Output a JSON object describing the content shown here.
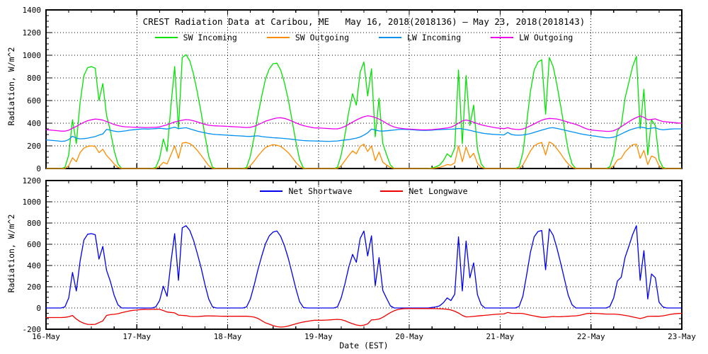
{
  "figure": {
    "background": "#ffffff",
    "axis_color": "#000000",
    "grid_style": "dotted"
  },
  "chart_data": [
    {
      "type": "line",
      "panel": "top",
      "title": "CREST Radiation Data at Caribou, ME   May 16, 2018(2018136) – May 23, 2018(2018143)",
      "ylabel": "Radiation, W/m^2",
      "ylim": [
        0,
        1400
      ],
      "yticks": [
        0,
        200,
        400,
        600,
        800,
        1000,
        1200,
        1400
      ],
      "ytick_minor_step": 50,
      "grid_y": [
        200,
        400,
        600,
        800,
        1000,
        1200
      ],
      "x_unit": "hours EST from 16-May 00:00 to 23-May 00:00, hourly samples",
      "x_hours_span": 168,
      "xtick_labels": [
        "16-May",
        "17-May",
        "18-May",
        "19-May",
        "20-May",
        "21-May",
        "22-May",
        "23-May"
      ],
      "xtick_minor_hours": 6,
      "legend_position": "top-center-inside",
      "series": [
        {
          "name": "SW Incoming",
          "color": "#00e300",
          "values": [
            0,
            0,
            0,
            0,
            0,
            10,
            120,
            430,
            220,
            580,
            820,
            890,
            900,
            885,
            600,
            750,
            470,
            330,
            160,
            40,
            0,
            0,
            0,
            0,
            0,
            0,
            0,
            0,
            0,
            10,
            90,
            260,
            150,
            550,
            900,
            350,
            980,
            1005,
            950,
            830,
            670,
            490,
            290,
            110,
            10,
            0,
            0,
            0,
            0,
            0,
            0,
            0,
            0,
            10,
            110,
            280,
            470,
            640,
            790,
            880,
            925,
            930,
            870,
            755,
            610,
            430,
            240,
            80,
            5,
            0,
            0,
            0,
            0,
            0,
            0,
            0,
            0,
            10,
            120,
            300,
            500,
            660,
            560,
            850,
            940,
            640,
            880,
            280,
            620,
            220,
            120,
            30,
            0,
            0,
            0,
            0,
            0,
            0,
            0,
            0,
            0,
            0,
            5,
            15,
            30,
            70,
            130,
            100,
            180,
            870,
            220,
            820,
            380,
            560,
            170,
            40,
            0,
            0,
            0,
            0,
            0,
            0,
            0,
            0,
            0,
            15,
            140,
            400,
            680,
            870,
            940,
            960,
            480,
            980,
            900,
            740,
            550,
            350,
            160,
            40,
            0,
            0,
            0,
            0,
            0,
            0,
            0,
            0,
            0,
            15,
            120,
            330,
            380,
            620,
            760,
            900,
            990,
            350,
            700,
            120,
            430,
            380,
            80,
            10,
            0,
            0,
            0,
            0,
            0
          ]
        },
        {
          "name": "SW Outgoing",
          "color": "#ff8c00",
          "values": [
            0,
            0,
            0,
            0,
            0,
            0,
            25,
            95,
            60,
            140,
            180,
            195,
            200,
            195,
            140,
            170,
            115,
            80,
            40,
            10,
            0,
            0,
            0,
            0,
            0,
            0,
            0,
            0,
            0,
            0,
            20,
            55,
            40,
            120,
            200,
            90,
            225,
            230,
            220,
            195,
            160,
            115,
            70,
            25,
            0,
            0,
            0,
            0,
            0,
            0,
            0,
            0,
            0,
            0,
            25,
            65,
            110,
            150,
            185,
            200,
            210,
            205,
            195,
            170,
            140,
            100,
            55,
            20,
            0,
            0,
            0,
            0,
            0,
            0,
            0,
            0,
            0,
            0,
            25,
            70,
            115,
            155,
            130,
            195,
            215,
            150,
            200,
            70,
            145,
            55,
            30,
            10,
            0,
            0,
            0,
            0,
            0,
            0,
            0,
            0,
            0,
            0,
            0,
            5,
            10,
            20,
            35,
            30,
            50,
            200,
            60,
            190,
            95,
            135,
            45,
            10,
            0,
            0,
            0,
            0,
            0,
            0,
            0,
            0,
            0,
            0,
            30,
            90,
            155,
            200,
            220,
            230,
            120,
            235,
            215,
            175,
            130,
            80,
            40,
            10,
            0,
            0,
            0,
            0,
            0,
            0,
            0,
            0,
            0,
            0,
            25,
            75,
            90,
            145,
            180,
            210,
            215,
            90,
            160,
            35,
            110,
            95,
            25,
            0,
            0,
            0,
            0,
            0,
            0
          ]
        },
        {
          "name": "LW Incoming",
          "color": "#0090f0",
          "values": [
            252,
            250,
            247,
            244,
            240,
            242,
            255,
            285,
            268,
            262,
            264,
            268,
            275,
            282,
            295,
            305,
            345,
            338,
            330,
            325,
            328,
            332,
            338,
            342,
            345,
            348,
            350,
            348,
            350,
            352,
            355,
            352,
            348,
            356,
            365,
            352,
            356,
            360,
            350,
            340,
            330,
            322,
            315,
            308,
            303,
            300,
            298,
            296,
            294,
            292,
            290,
            288,
            286,
            284,
            283,
            286,
            288,
            282,
            278,
            275,
            272,
            270,
            268,
            265,
            262,
            258,
            254,
            250,
            247,
            245,
            244,
            243,
            242,
            241,
            240,
            240,
            241,
            243,
            248,
            252,
            255,
            262,
            268,
            278,
            295,
            315,
            348,
            340,
            332,
            330,
            333,
            336,
            340,
            344,
            346,
            345,
            343,
            341,
            339,
            337,
            336,
            337,
            339,
            341,
            343,
            345,
            346,
            347,
            349,
            353,
            350,
            344,
            337,
            329,
            321,
            314,
            309,
            305,
            302,
            300,
            298,
            296,
            318,
            300,
            295,
            294,
            296,
            301,
            309,
            319,
            329,
            339,
            349,
            358,
            360,
            354,
            347,
            339,
            331,
            323,
            316,
            308,
            301,
            296,
            290,
            286,
            281,
            276,
            271,
            271,
            277,
            289,
            305,
            321,
            337,
            349,
            358,
            365,
            361,
            351,
            356,
            360,
            347,
            341,
            345,
            348,
            350,
            350,
            350
          ]
        },
        {
          "name": "LW Outgoing",
          "color": "#ee00ee",
          "values": [
            342,
            340,
            337,
            334,
            330,
            330,
            338,
            356,
            372,
            390,
            408,
            422,
            430,
            436,
            433,
            427,
            415,
            401,
            389,
            379,
            372,
            368,
            366,
            365,
            364,
            363,
            362,
            362,
            363,
            364,
            368,
            376,
            386,
            398,
            411,
            419,
            426,
            432,
            429,
            421,
            411,
            400,
            390,
            382,
            378,
            376,
            375,
            374,
            372,
            370,
            368,
            366,
            364,
            362,
            364,
            372,
            386,
            401,
            418,
            428,
            438,
            446,
            448,
            442,
            432,
            418,
            403,
            390,
            379,
            371,
            364,
            358,
            358,
            356,
            354,
            352,
            350,
            350,
            358,
            372,
            390,
            410,
            428,
            444,
            457,
            465,
            460,
            450,
            436,
            418,
            398,
            380,
            366,
            358,
            354,
            350,
            348,
            346,
            344,
            342,
            341,
            342,
            344,
            347,
            350,
            354,
            358,
            365,
            380,
            400,
            420,
            428,
            420,
            408,
            396,
            386,
            378,
            371,
            365,
            359,
            355,
            352,
            360,
            350,
            346,
            344,
            349,
            361,
            377,
            394,
            411,
            427,
            437,
            442,
            440,
            437,
            429,
            419,
            409,
            399,
            390,
            377,
            362,
            348,
            340,
            337,
            334,
            331,
            328,
            328,
            334,
            349,
            369,
            391,
            413,
            433,
            450,
            464,
            452,
            430,
            433,
            438,
            425,
            415,
            412,
            408,
            405,
            402,
            400
          ]
        }
      ]
    },
    {
      "type": "line",
      "panel": "bottom",
      "ylabel": "Radiation, W/m^2",
      "xlabel": "Date (EST)",
      "ylim": [
        -200,
        1200
      ],
      "yticks": [
        -200,
        0,
        200,
        400,
        600,
        800,
        1000,
        1200
      ],
      "ytick_minor_step": 50,
      "grid_y": [
        0,
        200,
        400,
        600,
        800,
        1000
      ],
      "x_hours_span": 168,
      "xtick_labels": [
        "16-May",
        "17-May",
        "18-May",
        "19-May",
        "20-May",
        "21-May",
        "22-May",
        "23-May"
      ],
      "xtick_minor_hours": 6,
      "legend_position": "top-center-inside",
      "series": [
        {
          "name": "Net Shortwave",
          "color": "#0000ee",
          "values": [
            0,
            0,
            0,
            0,
            0,
            10,
            95,
            335,
            160,
            440,
            640,
            695,
            700,
            690,
            460,
            580,
            355,
            250,
            120,
            30,
            0,
            0,
            0,
            0,
            0,
            0,
            0,
            0,
            0,
            10,
            70,
            205,
            110,
            430,
            700,
            260,
            755,
            775,
            730,
            635,
            510,
            375,
            220,
            85,
            10,
            0,
            0,
            0,
            0,
            0,
            0,
            0,
            0,
            10,
            85,
            215,
            360,
            490,
            605,
            680,
            715,
            725,
            675,
            585,
            470,
            330,
            185,
            60,
            5,
            0,
            0,
            0,
            0,
            0,
            0,
            0,
            0,
            10,
            95,
            230,
            385,
            505,
            430,
            655,
            725,
            490,
            680,
            210,
            475,
            165,
            90,
            20,
            0,
            0,
            0,
            0,
            0,
            0,
            0,
            0,
            0,
            0,
            5,
            10,
            20,
            50,
            95,
            70,
            130,
            670,
            160,
            630,
            285,
            425,
            125,
            30,
            0,
            0,
            0,
            0,
            0,
            0,
            0,
            0,
            0,
            15,
            110,
            310,
            525,
            670,
            720,
            730,
            360,
            745,
            685,
            565,
            420,
            270,
            120,
            30,
            0,
            0,
            0,
            0,
            0,
            0,
            0,
            0,
            0,
            15,
            95,
            255,
            290,
            475,
            580,
            690,
            775,
            260,
            540,
            85,
            320,
            285,
            55,
            10,
            0,
            0,
            0,
            0,
            0
          ]
        },
        {
          "name": "Net Longwave",
          "color": "#ee0000",
          "values": [
            -90,
            -90,
            -90,
            -90,
            -90,
            -88,
            -83,
            -71,
            -104,
            -128,
            -144,
            -154,
            -155,
            -154,
            -138,
            -122,
            -70,
            -63,
            -59,
            -54,
            -44,
            -36,
            -28,
            -23,
            -19,
            -15,
            -12,
            -14,
            -13,
            -12,
            -13,
            -24,
            -38,
            -42,
            -46,
            -67,
            -70,
            -72,
            -79,
            -81,
            -81,
            -78,
            -75,
            -74,
            -75,
            -76,
            -77,
            -78,
            -78,
            -78,
            -78,
            -78,
            -78,
            -78,
            -81,
            -86,
            -98,
            -119,
            -140,
            -153,
            -166,
            -176,
            -180,
            -177,
            -170,
            -160,
            -149,
            -140,
            -132,
            -126,
            -120,
            -115,
            -116,
            -115,
            -114,
            -112,
            -109,
            -107,
            -110,
            -120,
            -135,
            -148,
            -160,
            -166,
            -162,
            -150,
            -112,
            -110,
            -104,
            -88,
            -65,
            -44,
            -26,
            -14,
            -8,
            -5,
            -5,
            -5,
            -5,
            -5,
            -5,
            -5,
            -5,
            -6,
            -7,
            -9,
            -12,
            -18,
            -31,
            -47,
            -70,
            -84,
            -83,
            -79,
            -75,
            -72,
            -69,
            -66,
            -63,
            -59,
            -57,
            -56,
            -42,
            -50,
            -51,
            -50,
            -53,
            -60,
            -68,
            -75,
            -82,
            -88,
            -88,
            -84,
            -80,
            -83,
            -82,
            -80,
            -78,
            -76,
            -74,
            -69,
            -61,
            -52,
            -50,
            -51,
            -53,
            -55,
            -57,
            -57,
            -57,
            -60,
            -64,
            -70,
            -76,
            -84,
            -92,
            -99,
            -91,
            -79,
            -77,
            -78,
            -78,
            -74,
            -67,
            -60,
            -55,
            -52,
            -50
          ]
        }
      ]
    }
  ]
}
